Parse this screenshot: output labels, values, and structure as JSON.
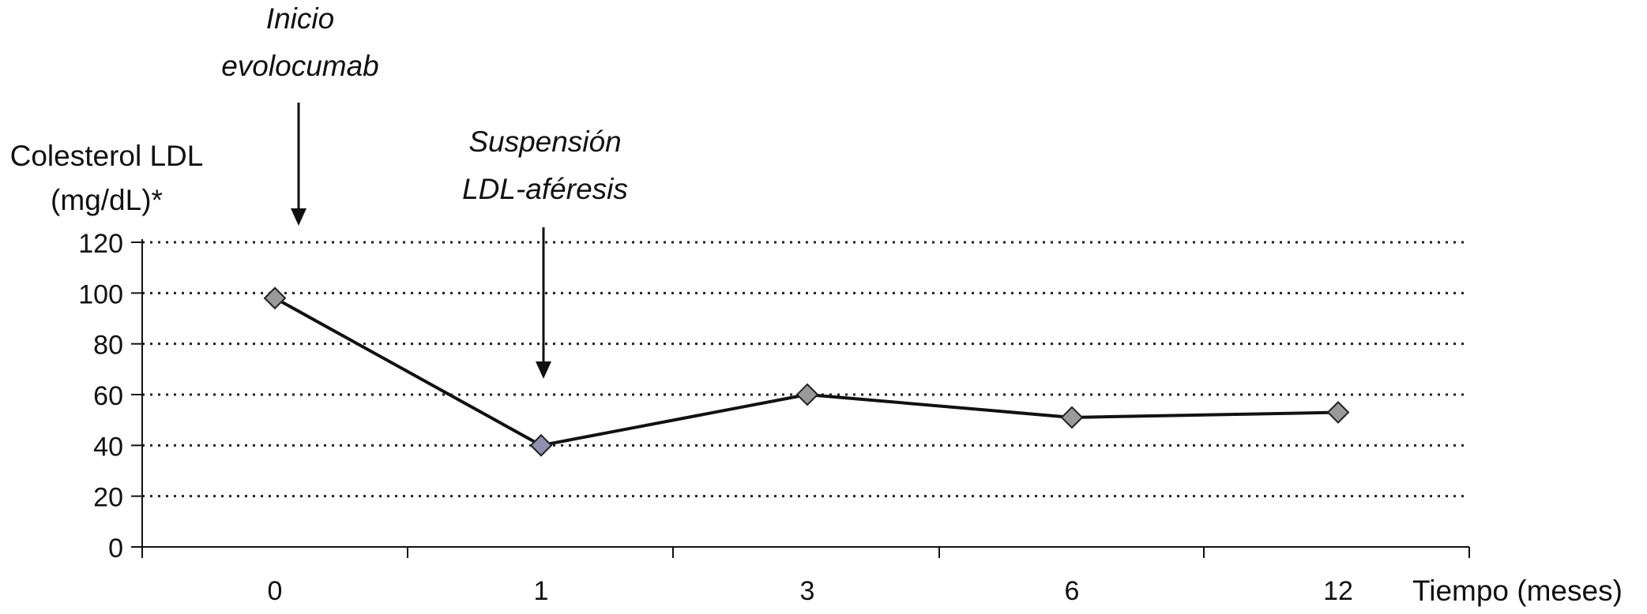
{
  "chart_data": {
    "type": "line",
    "ylabel_lines": [
      "Colesterol LDL",
      "(mg/dL)*"
    ],
    "xlabel": "Tiempo (meses)",
    "categories": [
      "0",
      "1",
      "3",
      "6",
      "12"
    ],
    "values": [
      98,
      40,
      60,
      51,
      53
    ],
    "ylim": [
      0,
      120
    ],
    "yticks": [
      "0",
      "20",
      "40",
      "60",
      "80",
      "100",
      "120"
    ],
    "grid": "horizontal dotted",
    "marker": "diamond",
    "colors": {
      "line": "#111111",
      "marker": "#9a9a9a",
      "marker_highlight": "#8f8fb0",
      "grid": "#222222"
    },
    "annotations": [
      {
        "lines": [
          "Inicio",
          "evolocumab"
        ],
        "at_category": "0"
      },
      {
        "lines": [
          "Suspensión",
          "LDL-aféresis"
        ],
        "at_category": "1"
      }
    ]
  }
}
